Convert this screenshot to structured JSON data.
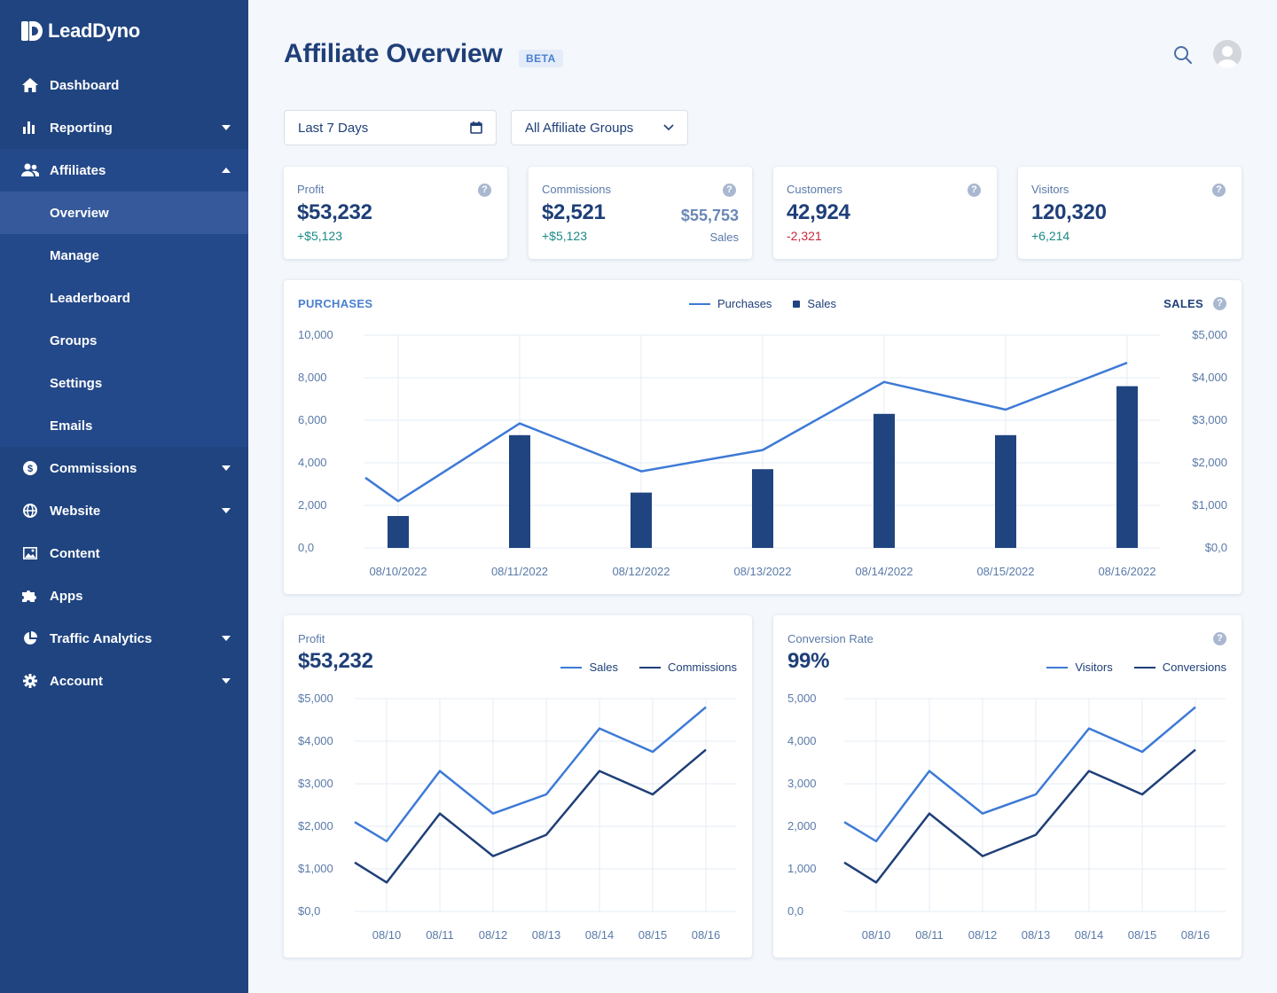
{
  "app": {
    "brand": "LeadDyno",
    "page_title": "Affiliate Overview",
    "badge": "BETA"
  },
  "sidebar": {
    "items": [
      {
        "label": "Dashboard",
        "icon": "home-icon"
      },
      {
        "label": "Reporting",
        "icon": "bar-chart-icon",
        "expandable": true
      },
      {
        "label": "Affiliates",
        "icon": "users-icon",
        "expanded": true
      },
      {
        "label": "Commissions",
        "icon": "dollar-circle-icon",
        "expandable": true
      },
      {
        "label": "Website",
        "icon": "globe-icon",
        "expandable": true
      },
      {
        "label": "Content",
        "icon": "image-icon"
      },
      {
        "label": "Apps",
        "icon": "puzzle-icon"
      },
      {
        "label": "Traffic Analytics",
        "icon": "pie-chart-icon",
        "expandable": true
      },
      {
        "label": "Account",
        "icon": "gear-icon",
        "expandable": true
      }
    ],
    "affiliates_sub": [
      "Overview",
      "Manage",
      "Leaderboard",
      "Groups",
      "Settings",
      "Emails"
    ],
    "active_sub": "Overview"
  },
  "filters": {
    "date_range": "Last 7 Days",
    "group": "All Affiliate Groups"
  },
  "stats": [
    {
      "label": "Profit",
      "value": "$53,232",
      "delta": "+$5,123",
      "trend": "up"
    },
    {
      "label": "Commissions",
      "value": "$2,521",
      "delta": "+$5,123",
      "trend": "up",
      "side_value": "$55,753",
      "side_label": "Sales"
    },
    {
      "label": "Customers",
      "value": "42,924",
      "delta": "-2,321",
      "trend": "down"
    },
    {
      "label": "Visitors",
      "value": "120,320",
      "delta": "+6,214",
      "trend": "up"
    }
  ],
  "colors": {
    "sidebar": "#1f4480",
    "accent": "#3d7ad6",
    "dark_series": "#1f4480",
    "positive": "#1b8a86",
    "negative": "#c8283b"
  },
  "chart_data": [
    {
      "type": "bar+line",
      "title_left": "PURCHASES",
      "title_right": "SALES",
      "categories": [
        "08/10/2022",
        "08/11/2022",
        "08/12/2022",
        "08/13/2022",
        "08/14/2022",
        "08/15/2022",
        "08/16/2022"
      ],
      "series": [
        {
          "name": "Purchases",
          "kind": "line",
          "axis": "left",
          "values": [
            2200,
            5850,
            3600,
            4600,
            7800,
            6500,
            8700
          ]
        },
        {
          "name": "Sales",
          "kind": "bar",
          "axis": "right",
          "values": [
            750,
            2650,
            1300,
            1850,
            3150,
            2650,
            3800
          ]
        }
      ],
      "line_start_value": 3300,
      "ylim_left": [
        0,
        10000
      ],
      "ylim_right": [
        0,
        5000
      ],
      "yticks_left": [
        "10,000",
        "8,000",
        "6,000",
        "4,000",
        "2,000",
        "0,0"
      ],
      "yticks_right": [
        "$5,000",
        "$4,000",
        "$3,000",
        "$2,000",
        "$1,000",
        "$0,0"
      ],
      "legend": "top-center"
    },
    {
      "type": "line",
      "label": "Profit",
      "headline": "$53,232",
      "categories": [
        "08/10",
        "08/11",
        "08/12",
        "08/13",
        "08/14",
        "08/15",
        "08/16"
      ],
      "series": [
        {
          "name": "Sales",
          "start": 2100,
          "values": [
            1650,
            3300,
            2300,
            2750,
            4300,
            3750,
            4800
          ]
        },
        {
          "name": "Commissions",
          "start": 1150,
          "values": [
            680,
            2300,
            1300,
            1800,
            3300,
            2750,
            3800
          ]
        }
      ],
      "ylim": [
        0,
        5000
      ],
      "yticks": [
        "$5,000",
        "$4,000",
        "$3,000",
        "$2,000",
        "$1,000",
        "$0,0"
      ],
      "legend": "top-right"
    },
    {
      "type": "line",
      "label": "Conversion Rate",
      "headline": "99%",
      "categories": [
        "08/10",
        "08/11",
        "08/12",
        "08/13",
        "08/14",
        "08/15",
        "08/16"
      ],
      "series": [
        {
          "name": "Visitors",
          "start": 2100,
          "values": [
            1650,
            3300,
            2300,
            2750,
            4300,
            3750,
            4800
          ]
        },
        {
          "name": "Conversions",
          "start": 1150,
          "values": [
            680,
            2300,
            1300,
            1800,
            3300,
            2750,
            3800
          ]
        }
      ],
      "ylim": [
        0,
        5000
      ],
      "yticks": [
        "5,000",
        "4,000",
        "3,000",
        "2,000",
        "1,000",
        "0,0"
      ],
      "legend": "top-right"
    }
  ]
}
